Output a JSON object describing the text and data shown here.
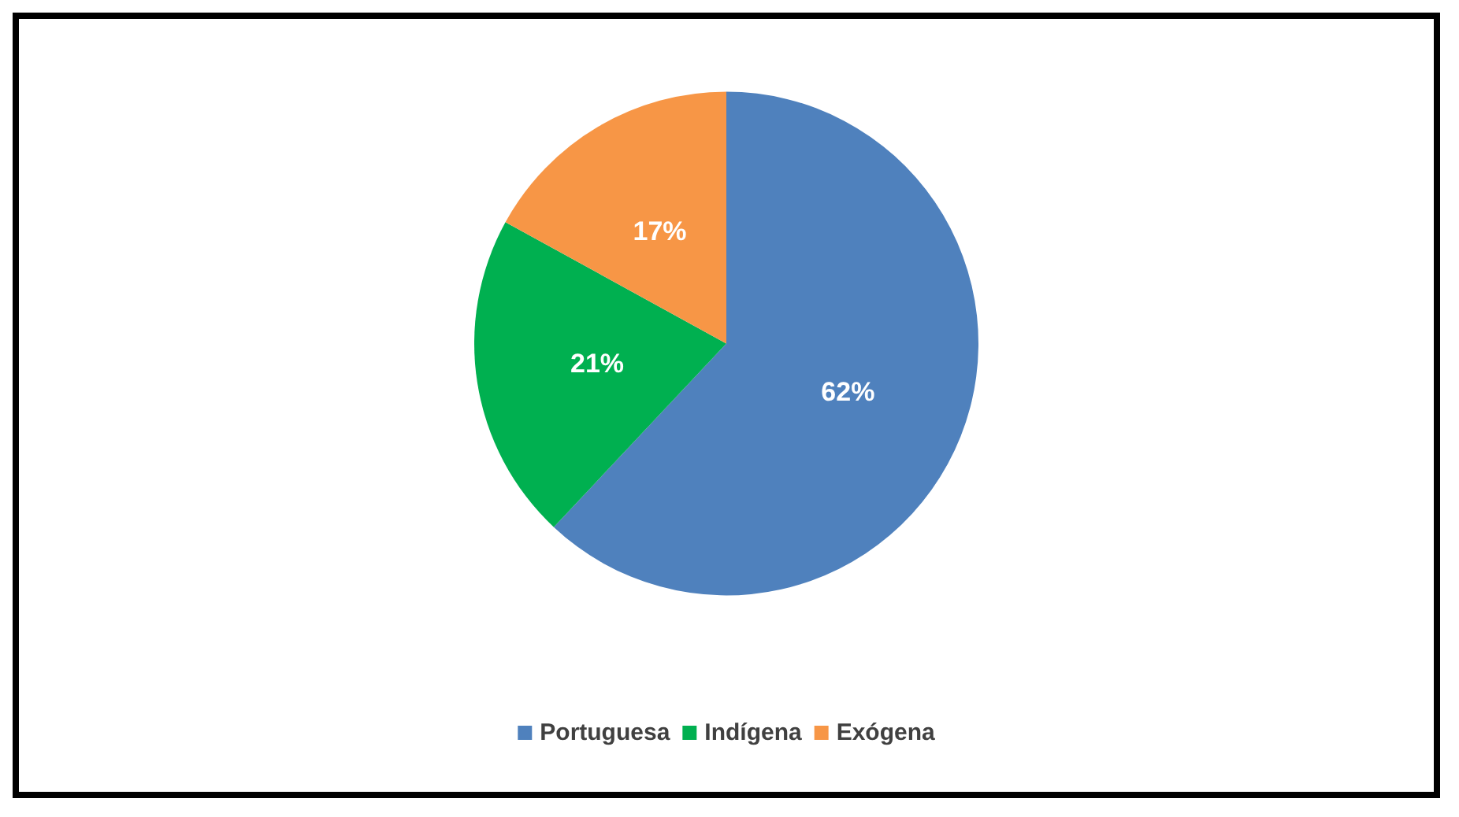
{
  "chart_data": {
    "type": "pie",
    "categories": [
      "Portuguesa",
      "Indígena",
      "Exógena"
    ],
    "values": [
      62,
      21,
      17
    ],
    "colors": [
      "#4f81bd",
      "#00b050",
      "#f79646"
    ],
    "value_labels": [
      "62%",
      "21%",
      "17%"
    ],
    "legend": "bottom"
  }
}
